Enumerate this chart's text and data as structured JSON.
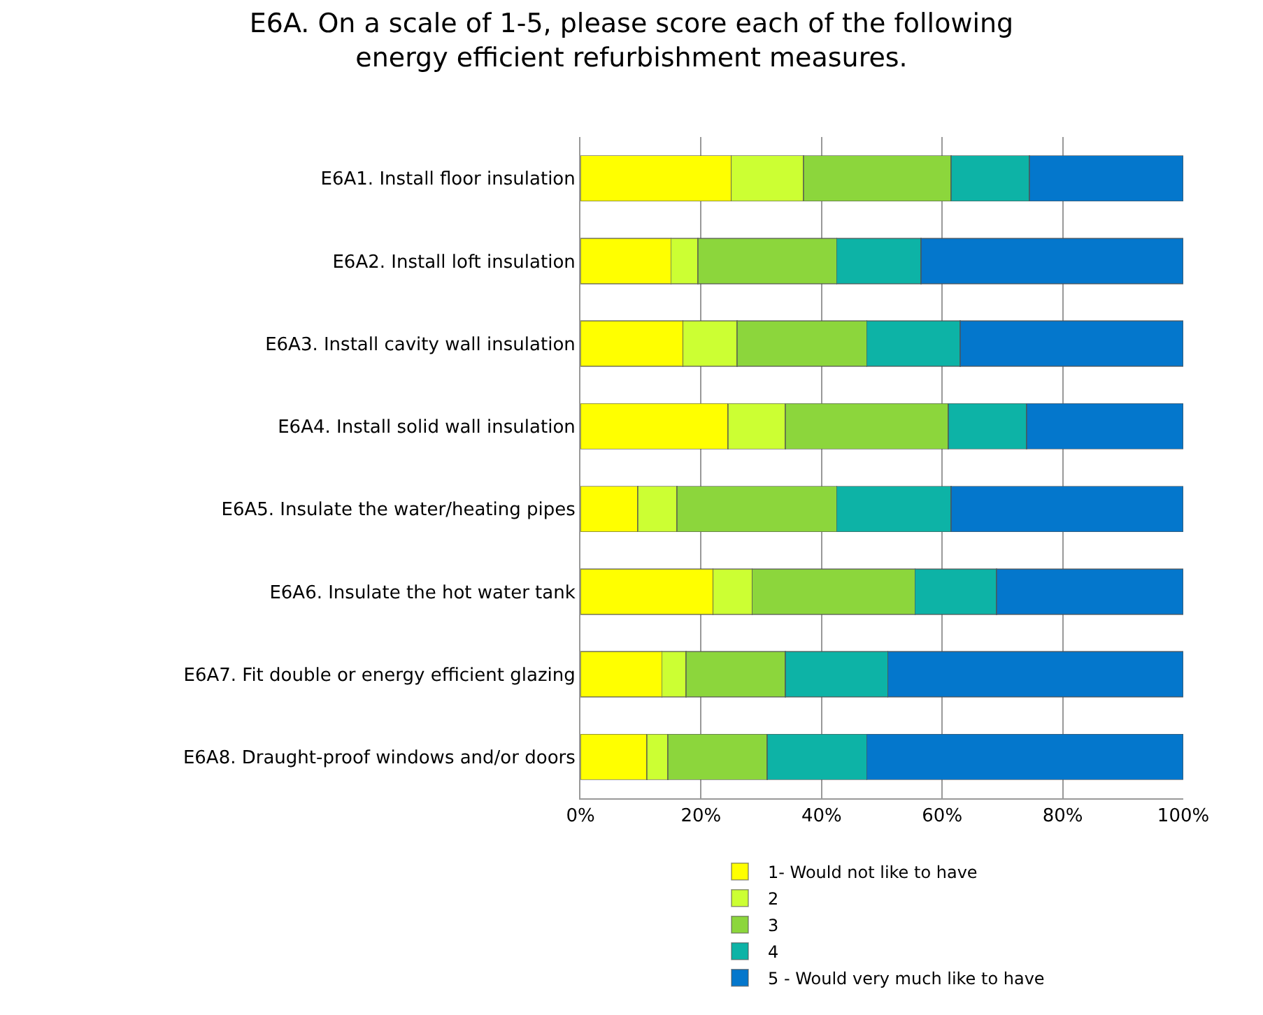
{
  "chart_data": {
    "type": "bar",
    "orientation": "horizontal",
    "stacked": true,
    "title": "E6A. On a scale of 1-5, please score each of the following energy efficient refurbishment measures.",
    "categories": [
      "E6A1. Install floor insulation",
      "E6A2. Install loft insulation",
      "E6A3. Install cavity wall insulation",
      "E6A4. Install solid wall insulation",
      "E6A5. Insulate the water/heating pipes",
      "E6A6. Insulate the hot water tank",
      "E6A7. Fit double or energy efficient glazing",
      "E6A8. Draught-proof windows and/or doors"
    ],
    "series": [
      {
        "name": "1- Would not like to have",
        "color": "#ffff00",
        "values": [
          25,
          15,
          17,
          24.5,
          9.5,
          22,
          13.5,
          11
        ]
      },
      {
        "name": "2",
        "color": "#ccff33",
        "values": [
          12,
          4.5,
          9,
          9.5,
          6.5,
          6.5,
          4,
          3.5
        ]
      },
      {
        "name": "3",
        "color": "#8cd63c",
        "values": [
          24.5,
          23,
          21.5,
          27,
          26.5,
          27,
          16.5,
          16.5
        ]
      },
      {
        "name": "4",
        "color": "#0db3a6",
        "values": [
          13,
          14,
          15.5,
          13,
          19,
          13.5,
          17,
          16.5
        ]
      },
      {
        "name": "5 - Would very much like to have",
        "color": "#0477cc",
        "values": [
          25.5,
          43.5,
          37,
          26,
          38.5,
          31,
          49,
          52.5
        ]
      }
    ],
    "xlim": [
      0,
      100
    ],
    "xticks": [
      {
        "value": 0,
        "label": "0%"
      },
      {
        "value": 20,
        "label": "20%"
      },
      {
        "value": 40,
        "label": "40%"
      },
      {
        "value": 60,
        "label": "60%"
      },
      {
        "value": 80,
        "label": "80%"
      },
      {
        "value": 100,
        "label": "100%"
      }
    ],
    "grid": "x",
    "legend": "bottom"
  }
}
